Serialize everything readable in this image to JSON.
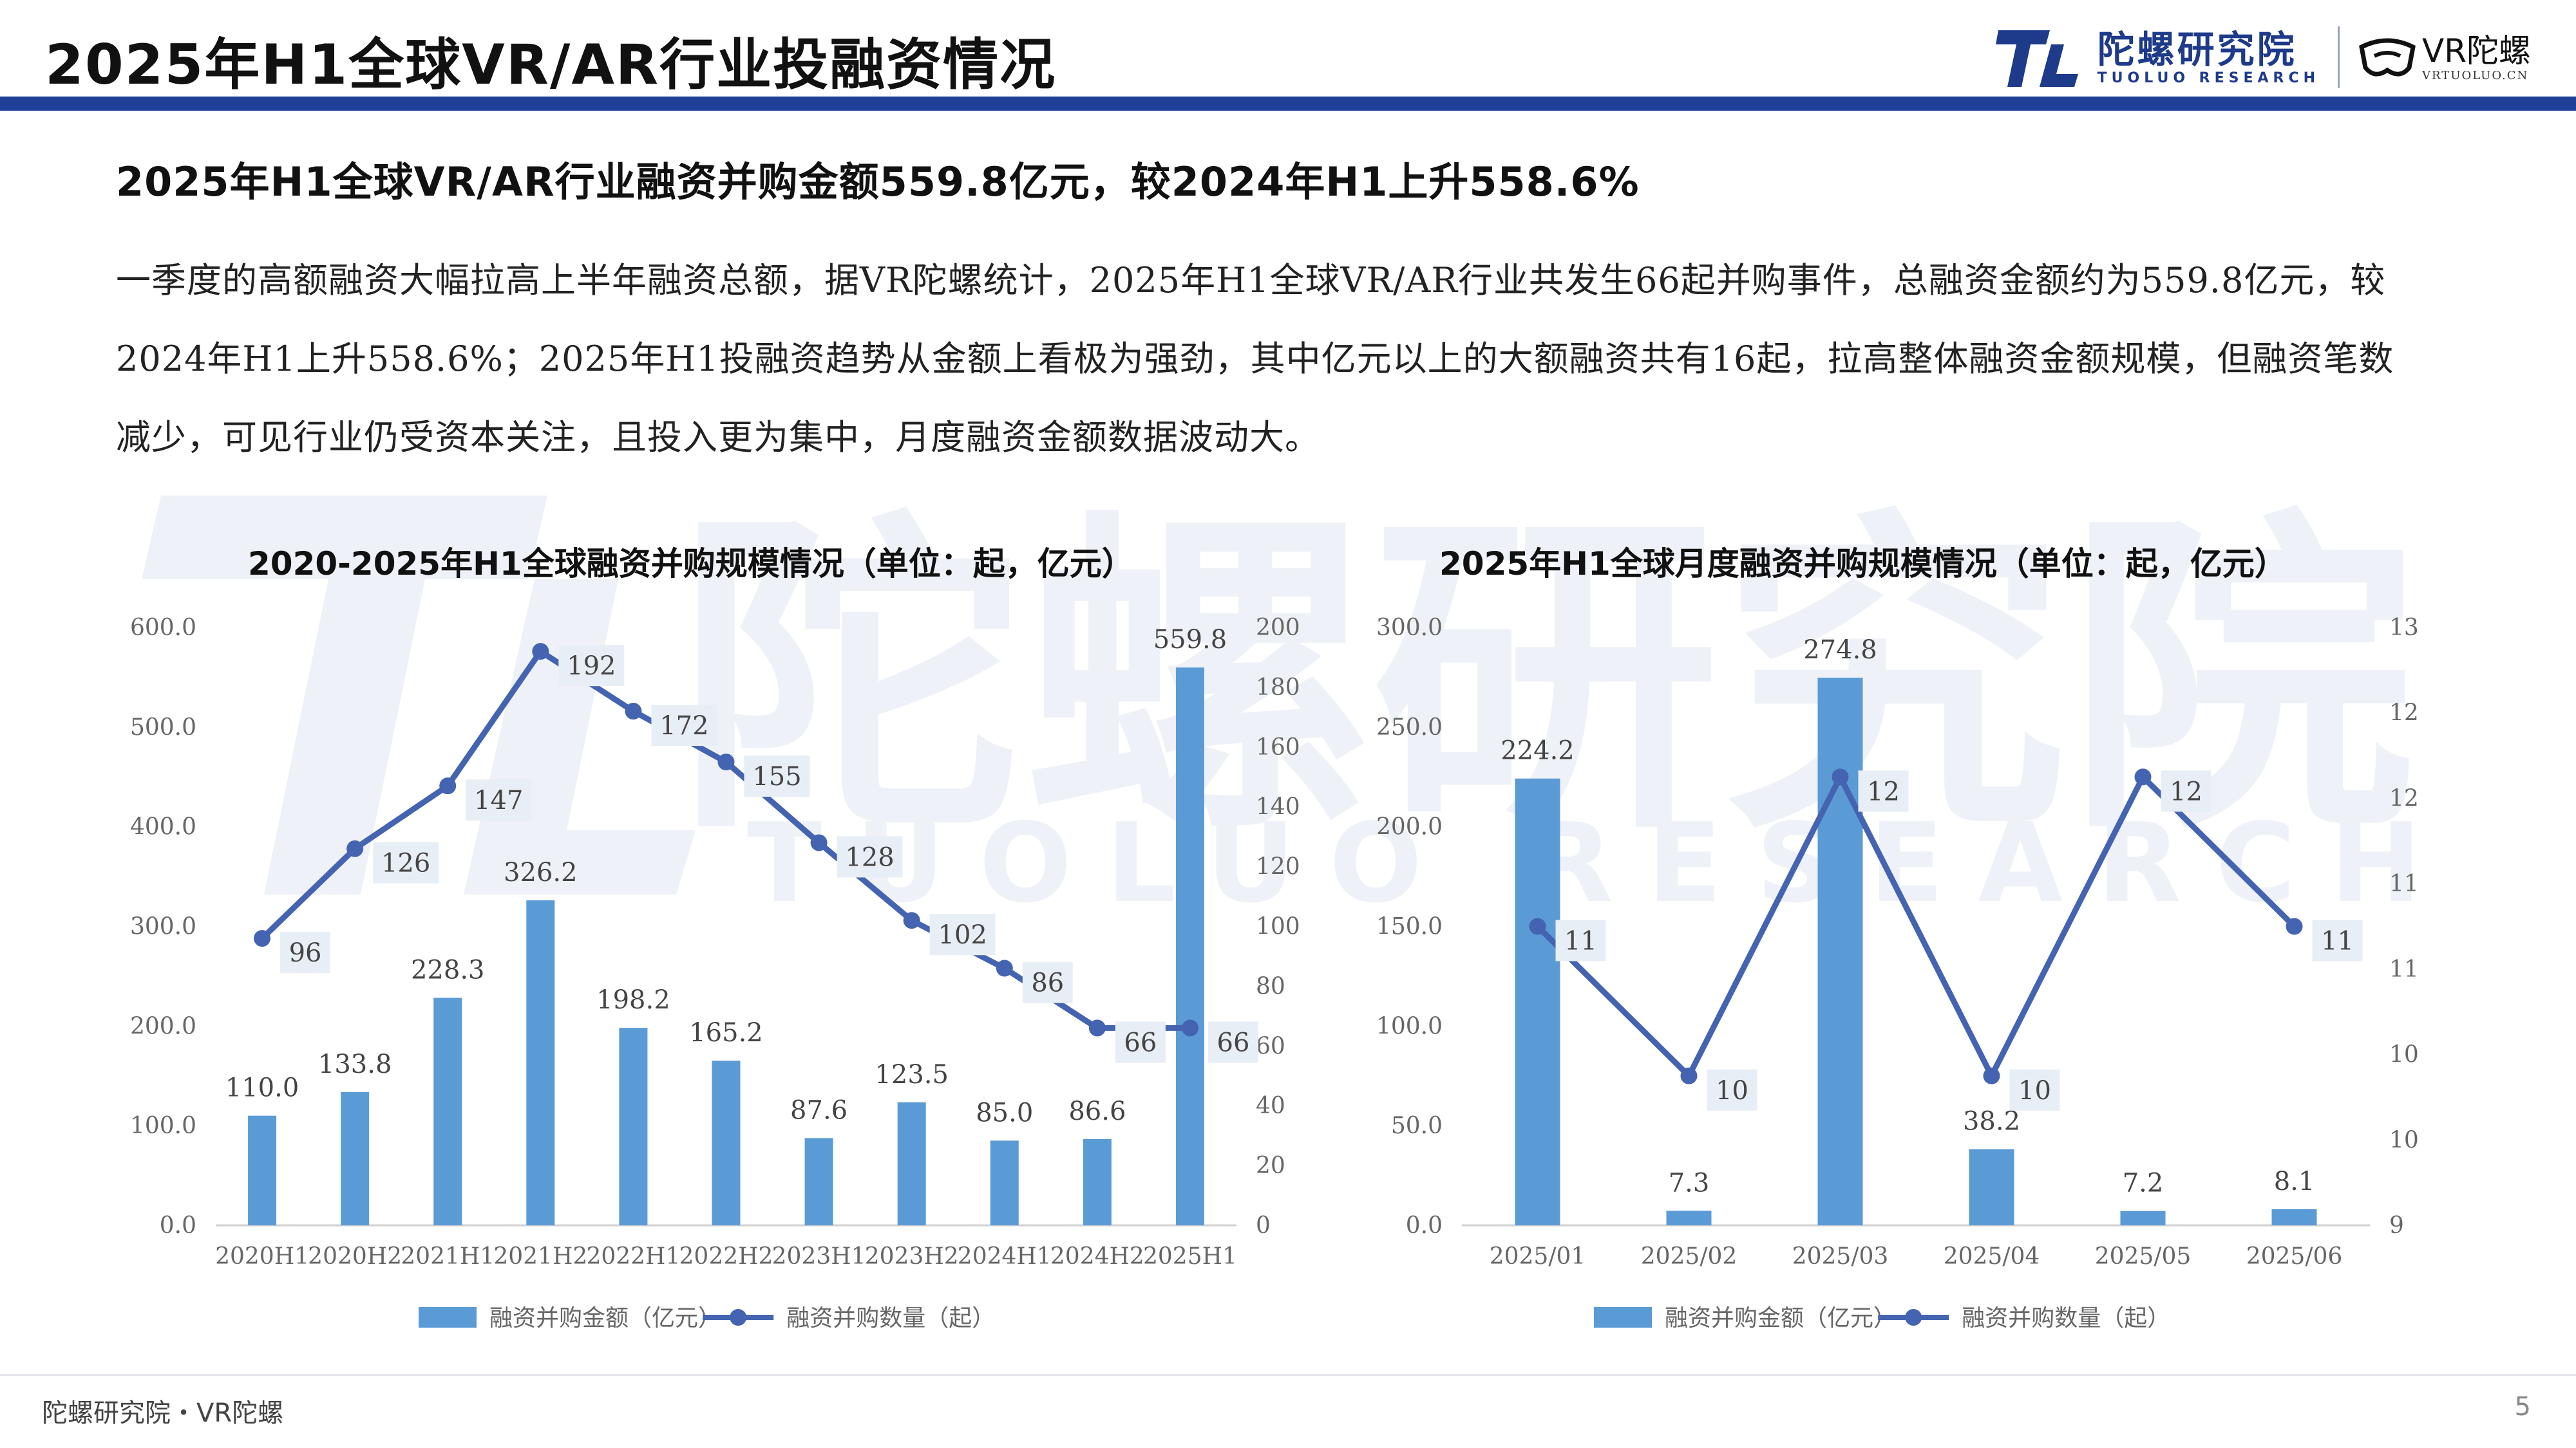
{
  "header": {
    "title": "2025年H1全球VR/AR行业投融资情况",
    "brand_cn": "陀螺研究院",
    "brand_en": "TUOLUO RESEARCH",
    "vr_brand": "VR陀螺",
    "vr_url": "VRTUOLUO.CN"
  },
  "subtitle": "2025年H1全球VR/AR行业融资并购金额559.8亿元，较2024年H1上升558.6%",
  "paragraph": "一季度的高额融资大幅拉高上半年融资总额，据VR陀螺统计，2025年H1全球VR/AR行业共发生66起并购事件，总融资金额约为559.8亿元，较2024年H1上升558.6%；2025年H1投融资趋势从金额上看极为强劲，其中亿元以上的大额融资共有16起，拉高整体融资金额规模，但融资笔数减少，可见行业仍受资本关注，且投入更为集中，月度融资金额数据波动大。",
  "watermark": {
    "cn": "陀螺研究院",
    "en": "TUOLUO RESEARCH"
  },
  "colors": {
    "bar": "#5b9bd5",
    "line": "#4463b0",
    "brand": "#1e3a8a",
    "top_bar": "#1f3f99"
  },
  "chart_data": [
    {
      "type": "bar",
      "title": "2020-2025年H1全球融资并购规模情况（单位：起，亿元）",
      "categories": [
        "2020H1",
        "2020H2",
        "2021H1",
        "2021H2",
        "2022H1",
        "2022H2",
        "2023H1",
        "2023H2",
        "2024H1",
        "2024H2",
        "2025H1"
      ],
      "series": [
        {
          "name": "融资并购金额（亿元）",
          "kind": "bar",
          "axis": "left",
          "values": [
            110.0,
            133.8,
            228.3,
            326.2,
            198.2,
            165.2,
            87.6,
            123.5,
            85.0,
            86.6,
            559.8
          ],
          "labels": [
            "110.0",
            "133.8",
            "228.3",
            "326.2",
            "198.2",
            "165.2",
            "87.6",
            "123.5",
            "85.0",
            "86.6",
            "559.8"
          ]
        },
        {
          "name": "融资并购数量（起）",
          "kind": "line",
          "axis": "right",
          "values": [
            96,
            126,
            147,
            192,
            172,
            155,
            128,
            102,
            86,
            66,
            66
          ],
          "labels": [
            "96",
            "126",
            "147",
            "192",
            "172",
            "155",
            "128",
            "102",
            "86",
            "66",
            "66"
          ]
        }
      ],
      "left_axis": {
        "min": 0,
        "max": 600,
        "ticks": [
          "0.0",
          "100.0",
          "200.0",
          "300.0",
          "400.0",
          "500.0",
          "600.0"
        ]
      },
      "right_axis": {
        "min": 0,
        "max": 200,
        "ticks": [
          "0",
          "20",
          "40",
          "60",
          "80",
          "100",
          "120",
          "140",
          "160",
          "180",
          "200"
        ]
      },
      "legend_position": "bottom",
      "grid": false
    },
    {
      "type": "bar",
      "title": "2025年H1全球月度融资并购规模情况（单位：起，亿元）",
      "categories": [
        "2025/01",
        "2025/02",
        "2025/03",
        "2025/04",
        "2025/05",
        "2025/06"
      ],
      "series": [
        {
          "name": "融资并购金额（亿元）",
          "kind": "bar",
          "axis": "left",
          "values": [
            224.2,
            7.3,
            274.8,
            38.2,
            7.2,
            8.1
          ],
          "labels": [
            "224.2",
            "7.3",
            "274.8",
            "38.2",
            "7.2",
            "8.1"
          ]
        },
        {
          "name": "融资并购数量（起）",
          "kind": "line",
          "axis": "right",
          "values": [
            11,
            10,
            12,
            10,
            12,
            11
          ],
          "labels": [
            "11",
            "10",
            "12",
            "10",
            "12",
            "11"
          ]
        }
      ],
      "left_axis": {
        "min": 0,
        "max": 300,
        "ticks": [
          "0.0",
          "50.0",
          "100.0",
          "150.0",
          "200.0",
          "250.0",
          "300.0"
        ]
      },
      "right_axis": {
        "min": 9,
        "max": 13,
        "ticks": [
          "9",
          "10",
          "10",
          "11",
          "11",
          "12",
          "12",
          "13"
        ]
      },
      "legend_position": "bottom",
      "grid": false
    }
  ],
  "footer": {
    "source": "陀螺研究院・VR陀螺",
    "page": "5"
  }
}
